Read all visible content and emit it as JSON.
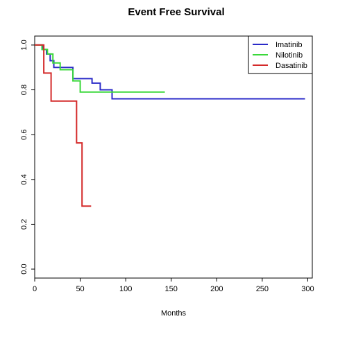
{
  "chart_data": {
    "type": "line",
    "step": true,
    "title": "Event Free Survival",
    "xlabel": "Months",
    "ylabel": "",
    "xlim": [
      0,
      305
    ],
    "ylim": [
      -0.04,
      1.04
    ],
    "x_ticks": [
      0,
      50,
      100,
      150,
      200,
      250,
      300
    ],
    "y_ticks": [
      0.0,
      0.2,
      0.4,
      0.6,
      0.8,
      1.0
    ],
    "y_tick_labels": [
      "0.0",
      "0.2",
      "0.4",
      "0.6",
      "0.8",
      "1.0"
    ],
    "grid": false,
    "legend_position": "top-right",
    "series": [
      {
        "name": "Imatinib",
        "color": "#2a2ac8",
        "x": [
          0,
          9,
          13,
          17,
          21,
          40,
          42,
          63,
          72,
          85,
          297
        ],
        "y": [
          1.0,
          0.98,
          0.96,
          0.93,
          0.9,
          0.9,
          0.85,
          0.83,
          0.8,
          0.76,
          0.76
        ]
      },
      {
        "name": "Nilotinib",
        "color": "#3ad83a",
        "x": [
          0,
          8,
          14,
          20,
          28,
          42,
          50,
          143
        ],
        "y": [
          1.0,
          0.98,
          0.96,
          0.92,
          0.89,
          0.84,
          0.79,
          0.79
        ]
      },
      {
        "name": "Dasatinib",
        "color": "#d42a2a",
        "x": [
          0,
          10,
          18,
          46,
          52,
          62
        ],
        "y": [
          1.0,
          0.875,
          0.75,
          0.563,
          0.281,
          0.281
        ]
      }
    ]
  }
}
